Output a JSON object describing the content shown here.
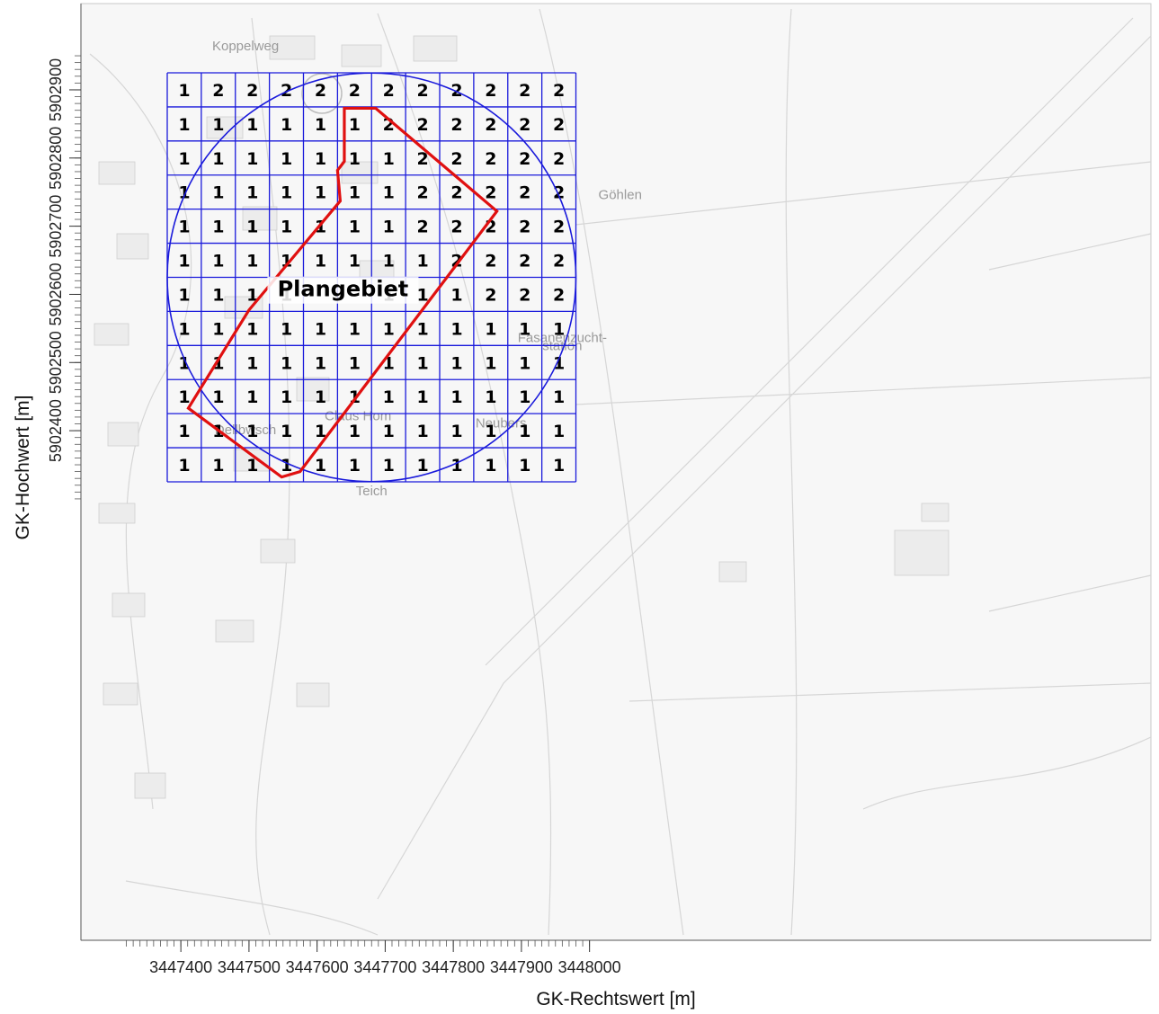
{
  "axes": {
    "x_title": "GK-Rechtswert [m]",
    "y_title": "GK-Hochwert [m]",
    "x_ticks": [
      {
        "value": 3447400,
        "label": "3447400"
      },
      {
        "value": 3447500,
        "label": "3447500"
      },
      {
        "value": 3447600,
        "label": "3447600"
      },
      {
        "value": 3447700,
        "label": "3447700"
      },
      {
        "value": 3447800,
        "label": "3447800"
      },
      {
        "value": 3447900,
        "label": "3447900"
      },
      {
        "value": 3448000,
        "label": "3448000"
      }
    ],
    "y_ticks": [
      {
        "value": 5902400,
        "label": "5902400"
      },
      {
        "value": 5902500,
        "label": "5902500"
      },
      {
        "value": 5902600,
        "label": "5902600"
      },
      {
        "value": 5902700,
        "label": "5902700"
      },
      {
        "value": 5902800,
        "label": "5902800"
      },
      {
        "value": 5902900,
        "label": "5902900"
      }
    ],
    "x_range": [
      3447318,
      3448000
    ],
    "y_range": [
      5902288,
      5902955
    ]
  },
  "grid": {
    "x_edges": [
      3447380,
      3447430,
      3447480,
      3447530,
      3447580,
      3447630,
      3447680,
      3447730,
      3447780,
      3447830,
      3447880,
      3447930,
      3447980
    ],
    "y_edges": [
      5902925,
      5902875,
      5902825,
      5902775,
      5902725,
      5902675,
      5902625,
      5902575,
      5902525,
      5902475,
      5902425,
      5902375,
      5902325
    ],
    "values": [
      [
        "1",
        "2",
        "2",
        "2",
        "2",
        "2",
        "2",
        "2",
        "2",
        "2",
        "2",
        "2"
      ],
      [
        "1",
        "1",
        "1",
        "1",
        "1",
        "1",
        "2",
        "2",
        "2",
        "2",
        "2",
        "2"
      ],
      [
        "1",
        "1",
        "1",
        "1",
        "1",
        "1",
        "1",
        "2",
        "2",
        "2",
        "2",
        "2"
      ],
      [
        "1",
        "1",
        "1",
        "1",
        "1",
        "1",
        "1",
        "2",
        "2",
        "2",
        "2",
        "2"
      ],
      [
        "1",
        "1",
        "1",
        "1",
        "1",
        "1",
        "1",
        "2",
        "2",
        "2",
        "2",
        "2"
      ],
      [
        "1",
        "1",
        "1",
        "1",
        "1",
        "1",
        "1",
        "1",
        "2",
        "2",
        "2",
        "2"
      ],
      [
        "1",
        "1",
        "1",
        "1",
        "",
        "",
        "1",
        "1",
        "1",
        "2",
        "2",
        "2"
      ],
      [
        "1",
        "1",
        "1",
        "1",
        "1",
        "1",
        "1",
        "1",
        "1",
        "1",
        "1",
        "1"
      ],
      [
        "1",
        "1",
        "1",
        "1",
        "1",
        "1",
        "1",
        "1",
        "1",
        "1",
        "1",
        "1"
      ],
      [
        "1",
        "1",
        "1",
        "1",
        "1",
        "1",
        "1",
        "1",
        "1",
        "1",
        "1",
        "1"
      ],
      [
        "1",
        "1",
        "1",
        "1",
        "1",
        "1",
        "1",
        "1",
        "1",
        "1",
        "1",
        "1"
      ],
      [
        "1",
        "1",
        "1",
        "1",
        "1",
        "1",
        "1",
        "1",
        "1",
        "1",
        "1",
        "1"
      ]
    ],
    "line_color": "#1a1adb"
  },
  "circle": {
    "center": [
      3447680,
      5902625
    ],
    "radius": 300,
    "color": "#1a1adb"
  },
  "plan_area": {
    "label": "Plangebiet",
    "label_anchor": [
      3447638,
      5902597
    ],
    "color": "#e01010",
    "polygon": [
      [
        3447640,
        5902873
      ],
      [
        3447686,
        5902873
      ],
      [
        3447864,
        5902722
      ],
      [
        3447575,
        5902340
      ],
      [
        3447548,
        5902332
      ],
      [
        3447411,
        5902433
      ],
      [
        3447500,
        5902577
      ],
      [
        3447634,
        5902737
      ],
      [
        3447630,
        5902782
      ],
      [
        3447640,
        5902795
      ]
    ]
  },
  "background_labels": [
    {
      "text": "Koppelweg",
      "at": [
        3447495,
        5902958
      ]
    },
    {
      "text": "Göhlen",
      "at": [
        3448045,
        5902740
      ]
    },
    {
      "text": "Claus Hom",
      "at": [
        3447660,
        5902415
      ]
    },
    {
      "text": "Dellbwsch",
      "at": [
        3447495,
        5902395
      ]
    },
    {
      "text": "Neubers",
      "at": [
        3447870,
        5902405
      ]
    },
    {
      "text": "Teich",
      "at": [
        3447680,
        5902305
      ]
    },
    {
      "text": "Fasanenzucht-",
      "at": [
        3447960,
        5902530
      ]
    },
    {
      "text": "station",
      "at": [
        3447960,
        5902518
      ]
    }
  ]
}
